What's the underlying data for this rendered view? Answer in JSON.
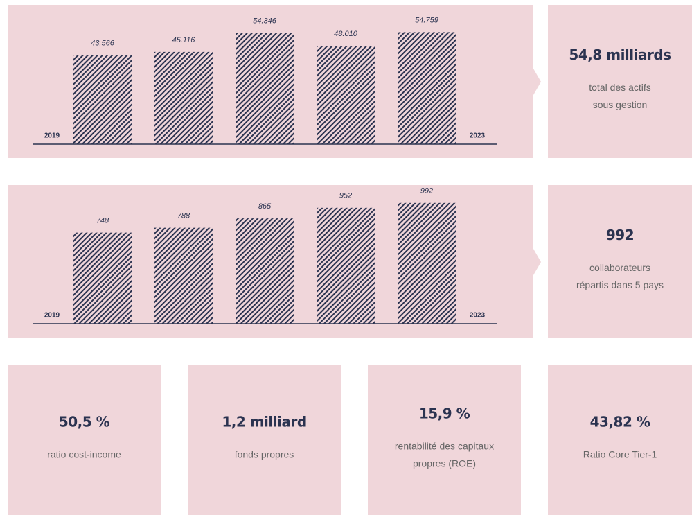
{
  "chart_data": [
    {
      "type": "bar",
      "categories": [
        "2019",
        null,
        null,
        null,
        "2023"
      ],
      "values": [
        43.566,
        45.116,
        54.346,
        48.01,
        54.759
      ],
      "value_labels": [
        "43.566",
        "45.116",
        "54.346",
        "48.010",
        "54.759"
      ],
      "ylim": [
        0,
        61
      ],
      "color": "#2b3350"
    },
    {
      "type": "bar",
      "categories": [
        "2019",
        null,
        null,
        null,
        "2023"
      ],
      "values": [
        748,
        788,
        865,
        952,
        992
      ],
      "ylim": [
        0,
        1025
      ],
      "color": "#2b3350"
    }
  ],
  "highlights": [
    {
      "value": "54,8 milliards",
      "label": [
        "total des actifs",
        "sous gestion"
      ]
    },
    {
      "value": "992",
      "label": [
        "collaborateurs",
        "répartis dans 5 pays"
      ]
    }
  ],
  "kpis": [
    {
      "value": "50,5 %",
      "label": [
        "ratio cost-income"
      ]
    },
    {
      "value": "1,2 milliard",
      "label": [
        "fonds propres"
      ]
    },
    {
      "value": "15,9 %",
      "label": [
        "rentabilité des capitaux",
        "propres (ROE)"
      ]
    },
    {
      "value": "43,82 %",
      "label": [
        "Ratio Core Tier-1"
      ]
    }
  ]
}
